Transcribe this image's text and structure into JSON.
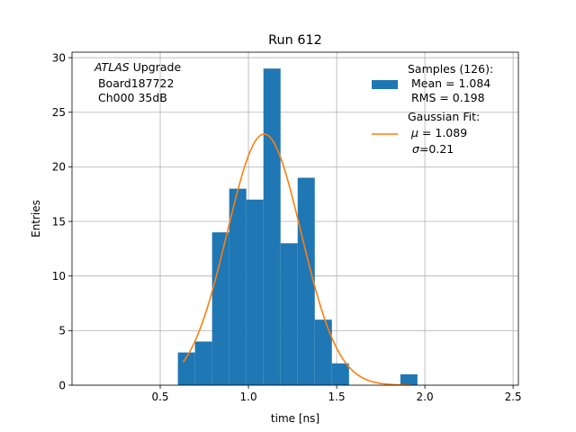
{
  "chart_data": {
    "type": "bar",
    "title": "Run 612",
    "xlabel": "time [ns]",
    "ylabel": "Entries",
    "xlim": [
      0.0,
      2.53
    ],
    "ylim": [
      0,
      30.5
    ],
    "xticks": [
      0.5,
      1.0,
      1.5,
      2.0,
      2.5
    ],
    "xtick_labels": [
      "0.5",
      "1.0",
      "1.5",
      "2.0",
      "2.5"
    ],
    "yticks": [
      0,
      5,
      10,
      15,
      20,
      25,
      30
    ],
    "ytick_labels": [
      "0",
      "5",
      "10",
      "15",
      "20",
      "25",
      "30"
    ],
    "grid": true,
    "bin_edges": [
      0.6,
      0.697,
      0.794,
      0.891,
      0.988,
      1.085,
      1.182,
      1.279,
      1.376,
      1.473,
      1.57,
      1.667,
      1.764,
      1.861,
      1.958
    ],
    "counts": [
      3,
      4,
      14,
      18,
      17,
      29,
      13,
      19,
      6,
      2,
      0,
      0,
      0,
      1
    ],
    "bar_color": "#1f77b4",
    "fit": {
      "mu": 1.089,
      "sigma": 0.21,
      "amplitude": 23.0,
      "x_range": [
        0.63,
        1.92
      ],
      "color": "#ff7f0e"
    },
    "annotation": {
      "italic": "ATLAS",
      "rest": " Upgrade",
      "line2": " Board187722",
      "line3": " Ch000 35dB"
    },
    "legend": {
      "position": "top-right",
      "hist": {
        "line1": "Samples (126):",
        "line2": " Mean = 1.084",
        "line3": " RMS = 0.198"
      },
      "fit": {
        "line1": "Gaussian Fit:",
        "mu_symbol": "μ",
        "mu_text": " = 1.089",
        "sigma_symbol": "σ",
        "sigma_text": "=0.21"
      }
    }
  }
}
